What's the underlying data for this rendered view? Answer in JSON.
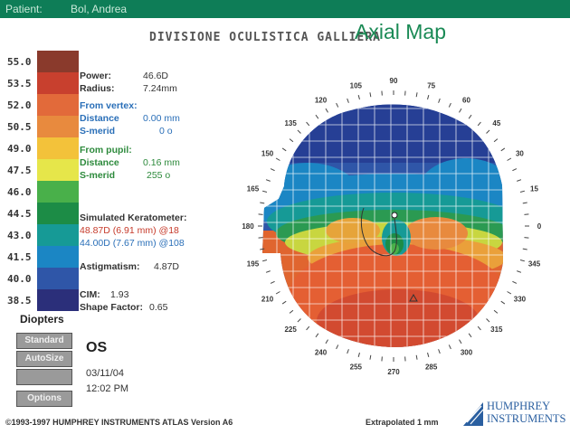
{
  "header": {
    "patient_label": "Patient:",
    "patient_name": "Bol, Andrea",
    "division": "DIVISIONE OCULISTICA GALLIERA",
    "map_title": "Axial Map"
  },
  "scale": {
    "values": [
      "55.0",
      "53.5",
      "52.0",
      "50.5",
      "49.0",
      "47.5",
      "46.0",
      "44.5",
      "43.0",
      "41.5",
      "40.0",
      "38.5"
    ],
    "colors": [
      "#8a3a2c",
      "#c8402e",
      "#e26a3a",
      "#e88a3e",
      "#f3c23a",
      "#e6e64a",
      "#49b04a",
      "#1c8c46",
      "#169a96",
      "#1b86c4",
      "#2f56a8",
      "#2b2f7a"
    ],
    "unit_label": "Diopters"
  },
  "buttons": {
    "standard": "Standard",
    "autosize": "AutoSize",
    "third": "",
    "options": "Options"
  },
  "info": {
    "power_label": "Power:",
    "power_value": "46.6D",
    "radius_label": "Radius:",
    "radius_value": "7.24mm",
    "from_vertex_title": "From vertex:",
    "vertex_distance_label": "Distance",
    "vertex_distance_value": "0.00 mm",
    "vertex_smerid_label": "S-merid",
    "vertex_smerid_value": "0 o",
    "from_pupil_title": "From pupil:",
    "pupil_distance_label": "Distance",
    "pupil_distance_value": "0.16 mm",
    "pupil_smerid_label": "S-merid",
    "pupil_smerid_value": "255 o",
    "sim_k_title": "Simulated Keratometer:",
    "sim_k_1": "48.87D (6.91 mm) @18",
    "sim_k_2": "44.00D (7.67 mm) @108",
    "astig_label": "Astigmatism:",
    "astig_value": "4.87D",
    "cim_label": "CIM:",
    "cim_value": "1.93",
    "shape_label": "Shape Factor:",
    "shape_value": "0.65"
  },
  "eye": {
    "label": "OS",
    "date": "03/11/04",
    "time": "12:02 PM"
  },
  "map": {
    "angles": [
      "90",
      "75",
      "60",
      "45",
      "30",
      "15",
      "0",
      "345",
      "330",
      "315",
      "300",
      "285",
      "270",
      "255",
      "240",
      "225",
      "210",
      "195",
      "180",
      "165",
      "150",
      "135",
      "120",
      "105"
    ]
  },
  "footer": {
    "copyright": "©1993-1997 HUMPHREY INSTRUMENTS ATLAS  Version A6",
    "extrapolated": "Extrapolated 1 mm",
    "logo_line1": "HUMPHREY",
    "logo_line2": "INSTRUMENTS"
  }
}
